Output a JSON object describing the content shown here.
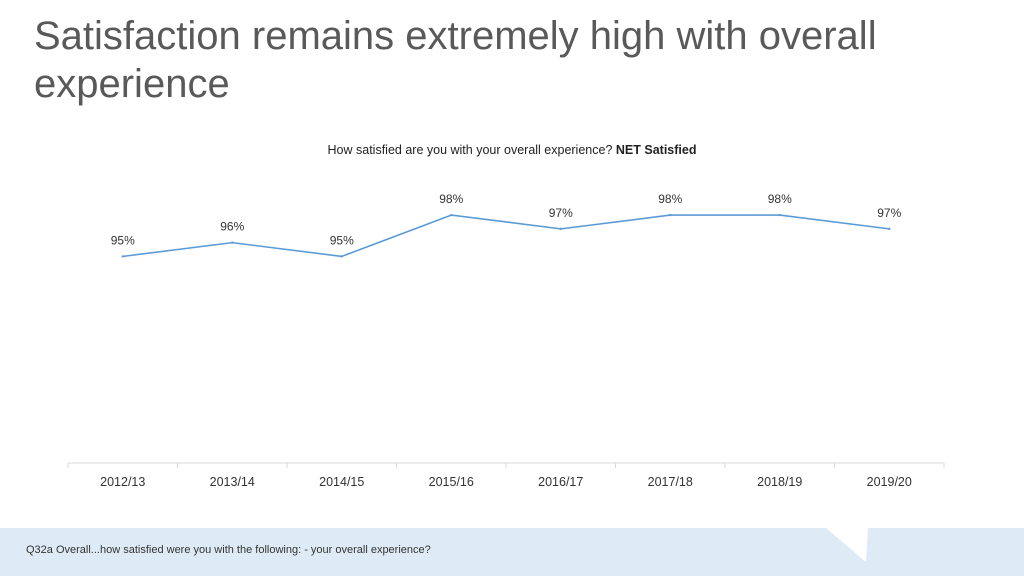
{
  "title": "Satisfaction remains extremely high with overall experience",
  "chart_data": {
    "type": "line",
    "title_prefix": "How satisfied are you with your overall experience?",
    "title_bold": "NET Satisfied",
    "categories": [
      "2012/13",
      "2013/14",
      "2014/15",
      "2015/16",
      "2016/17",
      "2017/18",
      "2018/19",
      "2019/20"
    ],
    "series": [
      {
        "values": [
          95,
          96,
          95,
          98,
          97,
          98,
          98,
          97
        ],
        "color": "#5b9bd5"
      }
    ],
    "data_labels": [
      "95%",
      "96%",
      "95%",
      "98%",
      "97%",
      "98%",
      "98%",
      "97%"
    ],
    "ylim": [
      80,
      102
    ],
    "grid": false,
    "legend": "none"
  },
  "footer": {
    "note": "Q32a Overall...how satisfied were you with the following: - your overall experience?",
    "color": "#deebf6"
  }
}
